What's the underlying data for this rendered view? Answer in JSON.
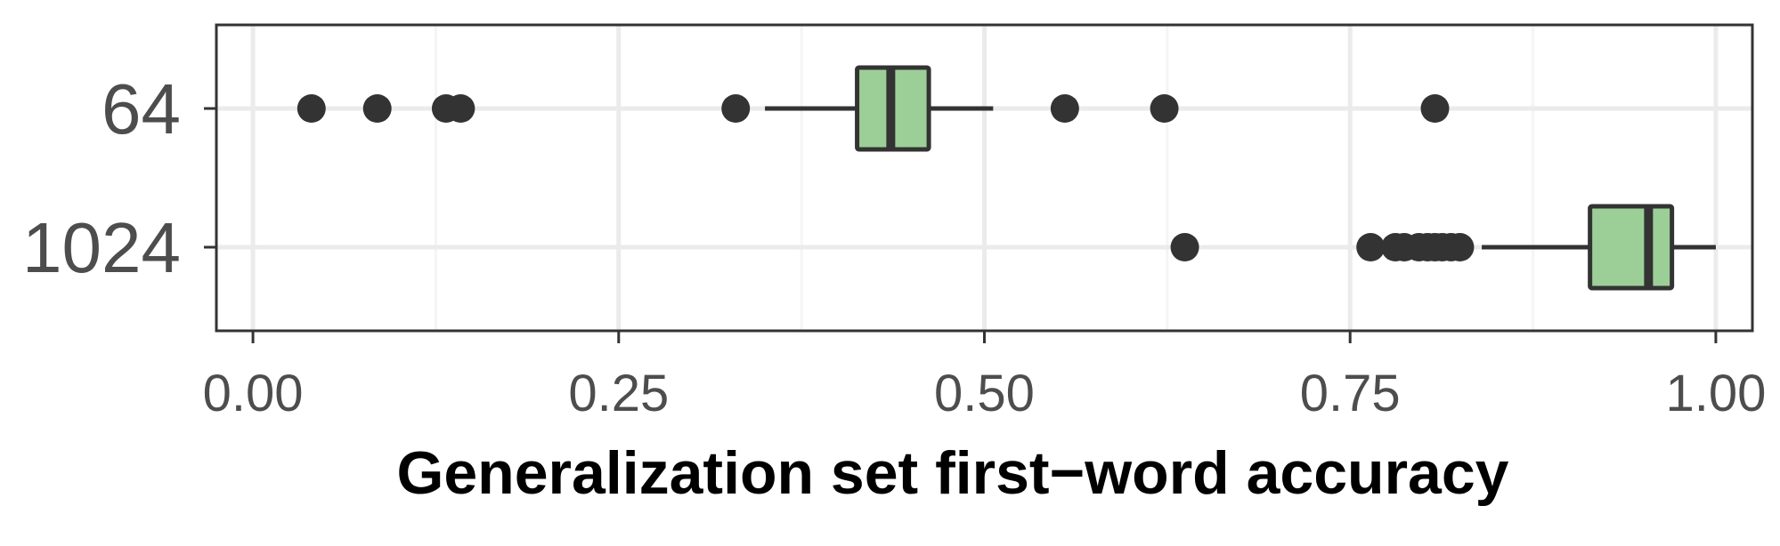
{
  "chart_data": {
    "type": "boxplot",
    "orientation": "horizontal",
    "title": "",
    "xlabel": "Generalization set first−word accuracy",
    "ylabel": "",
    "xlim": [
      -0.025,
      1.025
    ],
    "x_ticks": [
      0.0,
      0.25,
      0.5,
      0.75,
      1.0
    ],
    "x_tick_labels": [
      "0.00",
      "0.25",
      "0.50",
      "0.75",
      "1.00"
    ],
    "categories": [
      "64",
      "1024"
    ],
    "grid": true,
    "legend": "none",
    "colors": {
      "box_fill": "#9ccf98",
      "box_stroke": "#333333",
      "point": "#333333",
      "grid_major": "#ebebeb",
      "grid_minor": "#f5f5f5",
      "panel_border": "#333333",
      "tick_label": "#4d4d4d"
    },
    "boxes": [
      {
        "category": "64",
        "lower_whisker": 0.35,
        "q1": 0.413,
        "median": 0.436,
        "q3": 0.462,
        "upper_whisker": 0.506,
        "outliers": [
          0.04,
          0.085,
          0.132,
          0.142,
          0.33,
          0.555,
          0.623,
          0.808
        ]
      },
      {
        "category": "1024",
        "lower_whisker": 0.84,
        "q1": 0.914,
        "median": 0.954,
        "q3": 0.97,
        "upper_whisker": 1.0,
        "outliers": [
          0.637,
          0.764,
          0.781,
          0.787,
          0.797,
          0.803,
          0.808,
          0.813,
          0.819,
          0.825
        ]
      }
    ]
  }
}
